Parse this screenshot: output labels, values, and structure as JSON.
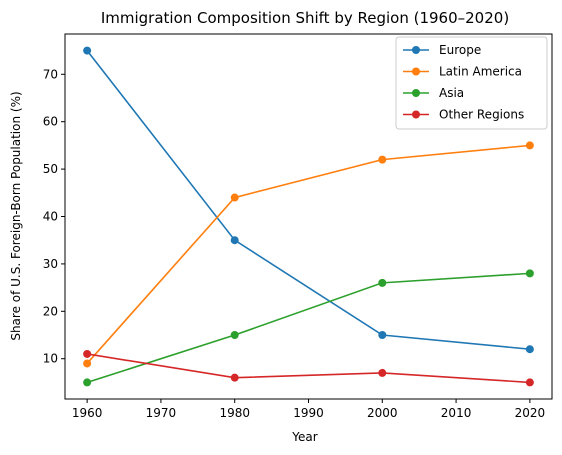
{
  "chart_data": {
    "type": "line",
    "title": "Immigration Composition Shift by Region (1960–2020)",
    "xlabel": "Year",
    "ylabel": "Share of U.S. Foreign-Born Population (%)",
    "x": [
      1960,
      1980,
      2000,
      2020
    ],
    "xlim": [
      1957,
      2023
    ],
    "ylim": [
      1.5,
      78.5
    ],
    "xticks": [
      1960,
      1970,
      1980,
      1990,
      2000,
      2010,
      2020
    ],
    "yticks": [
      10,
      20,
      30,
      40,
      50,
      60,
      70
    ],
    "grid": false,
    "legend_position": "top-right",
    "series": [
      {
        "name": "Europe",
        "color": "#1f77b4",
        "values": [
          75,
          35,
          15,
          12
        ]
      },
      {
        "name": "Latin America",
        "color": "#ff7f0e",
        "values": [
          9,
          44,
          52,
          55
        ]
      },
      {
        "name": "Asia",
        "color": "#2ca02c",
        "values": [
          5,
          15,
          26,
          28
        ]
      },
      {
        "name": "Other Regions",
        "color": "#d62728",
        "values": [
          11,
          6,
          7,
          5
        ]
      }
    ]
  }
}
